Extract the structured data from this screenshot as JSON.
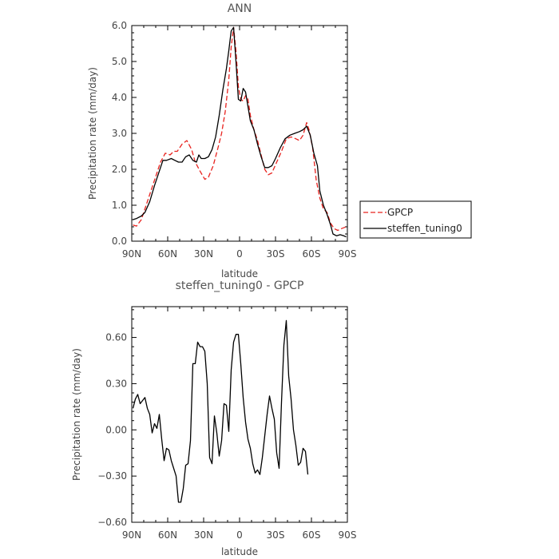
{
  "chart_data": [
    {
      "type": "line",
      "title": "ANN",
      "xlabel": "latitude",
      "ylabel": "Precipitation rate (mm/day)",
      "x_direction": "90N to 90S",
      "xlim": [
        90,
        -90
      ],
      "ylim": [
        0,
        6
      ],
      "xticks": [
        90,
        60,
        30,
        0,
        -30,
        -60,
        -90
      ],
      "xtick_labels": [
        "90N",
        "60N",
        "30N",
        "0",
        "30S",
        "60S",
        "90S"
      ],
      "yticks": [
        0,
        1,
        2,
        3,
        4,
        5,
        6
      ],
      "ytick_labels": [
        "0.0",
        "1.0",
        "2.0",
        "3.0",
        "4.0",
        "5.0",
        "6.0"
      ],
      "grid": false,
      "legend": "outside-right",
      "legend_entries": [
        "GPCP",
        "steffen_tuning0"
      ],
      "series": [
        {
          "name": "GPCP",
          "color": "#e8231f",
          "dash": true,
          "points": [
            [
              89,
              0.45
            ],
            [
              86,
              0.42
            ],
            [
              82,
              0.6
            ],
            [
              78,
              1.0
            ],
            [
              72,
              1.6
            ],
            [
              66,
              2.2
            ],
            [
              62,
              2.45
            ],
            [
              58,
              2.4
            ],
            [
              55,
              2.5
            ],
            [
              52,
              2.5
            ],
            [
              48,
              2.7
            ],
            [
              44,
              2.8
            ],
            [
              40,
              2.55
            ],
            [
              37,
              2.2
            ],
            [
              33,
              1.95
            ],
            [
              29,
              1.72
            ],
            [
              26,
              1.78
            ],
            [
              22,
              2.1
            ],
            [
              18,
              2.6
            ],
            [
              15,
              3.0
            ],
            [
              12,
              3.6
            ],
            [
              9,
              4.5
            ],
            [
              7,
              5.4
            ],
            [
              5,
              5.95
            ],
            [
              3,
              5.3
            ],
            [
              1,
              4.3
            ],
            [
              -1,
              3.95
            ],
            [
              -3,
              3.9
            ],
            [
              -5,
              4.05
            ],
            [
              -7,
              3.95
            ],
            [
              -9,
              3.5
            ],
            [
              -12,
              3.1
            ],
            [
              -15,
              2.8
            ],
            [
              -18,
              2.4
            ],
            [
              -21,
              2.0
            ],
            [
              -24,
              1.85
            ],
            [
              -27,
              1.9
            ],
            [
              -31,
              2.2
            ],
            [
              -35,
              2.5
            ],
            [
              -39,
              2.85
            ],
            [
              -43,
              2.9
            ],
            [
              -47,
              2.85
            ],
            [
              -50,
              2.8
            ],
            [
              -53,
              2.95
            ],
            [
              -56,
              3.3
            ],
            [
              -58,
              3.1
            ],
            [
              -61,
              2.6
            ],
            [
              -64,
              1.7
            ],
            [
              -67,
              1.2
            ],
            [
              -70,
              0.9
            ],
            [
              -73,
              0.8
            ],
            [
              -76,
              0.5
            ],
            [
              -79,
              0.35
            ],
            [
              -82,
              0.3
            ],
            [
              -85,
              0.35
            ],
            [
              -89,
              0.4
            ]
          ]
        },
        {
          "name": "steffen_tuning0",
          "color": "#000000",
          "dash": false,
          "points": [
            [
              89,
              0.6
            ],
            [
              86,
              0.63
            ],
            [
              82,
              0.7
            ],
            [
              79,
              0.8
            ],
            [
              75,
              1.1
            ],
            [
              71,
              1.55
            ],
            [
              67,
              1.95
            ],
            [
              64,
              2.25
            ],
            [
              61,
              2.25
            ],
            [
              57,
              2.3
            ],
            [
              54,
              2.25
            ],
            [
              51,
              2.2
            ],
            [
              48,
              2.2
            ],
            [
              45,
              2.35
            ],
            [
              42,
              2.4
            ],
            [
              39,
              2.25
            ],
            [
              36,
              2.2
            ],
            [
              34,
              2.4
            ],
            [
              32,
              2.3
            ],
            [
              29,
              2.3
            ],
            [
              26,
              2.35
            ],
            [
              23,
              2.55
            ],
            [
              20,
              2.9
            ],
            [
              17,
              3.5
            ],
            [
              14,
              4.2
            ],
            [
              11,
              4.8
            ],
            [
              9,
              5.3
            ],
            [
              7,
              5.85
            ],
            [
              5,
              5.95
            ],
            [
              3,
              5.0
            ],
            [
              1,
              3.95
            ],
            [
              -1,
              3.9
            ],
            [
              -3,
              4.25
            ],
            [
              -5,
              4.15
            ],
            [
              -7,
              3.75
            ],
            [
              -9,
              3.35
            ],
            [
              -12,
              3.1
            ],
            [
              -15,
              2.7
            ],
            [
              -18,
              2.35
            ],
            [
              -21,
              2.05
            ],
            [
              -24,
              2.05
            ],
            [
              -27,
              2.1
            ],
            [
              -30,
              2.3
            ],
            [
              -34,
              2.6
            ],
            [
              -38,
              2.85
            ],
            [
              -42,
              2.95
            ],
            [
              -46,
              3.0
            ],
            [
              -50,
              3.05
            ],
            [
              -53,
              3.1
            ],
            [
              -56,
              3.2
            ],
            [
              -59,
              2.95
            ],
            [
              -62,
              2.45
            ],
            [
              -65,
              2.1
            ],
            [
              -67,
              1.4
            ],
            [
              -70,
              1.0
            ],
            [
              -73,
              0.75
            ],
            [
              -76,
              0.45
            ],
            [
              -78,
              0.2
            ],
            [
              -81,
              0.15
            ],
            [
              -84,
              0.18
            ],
            [
              -87,
              0.15
            ],
            [
              -89,
              0.12
            ]
          ]
        }
      ]
    },
    {
      "type": "line",
      "title": "steffen_tuning0 - GPCP",
      "xlabel": "latitude",
      "ylabel": "Precipitation rate (mm/day)",
      "x_direction": "90N to 90S",
      "xlim": [
        90,
        -90
      ],
      "ylim": [
        -0.6,
        0.8
      ],
      "xticks": [
        90,
        60,
        30,
        0,
        -30,
        -60,
        -90
      ],
      "xtick_labels": [
        "90N",
        "60N",
        "30N",
        "0",
        "30S",
        "60S",
        "90S"
      ],
      "yticks": [
        -0.6,
        -0.3,
        0,
        0.3,
        0.6
      ],
      "ytick_labels": [
        "−0.60",
        "−0.30",
        "0.00",
        "0.30",
        "0.60"
      ],
      "grid": false,
      "series": [
        {
          "color": "#000000",
          "dash": false,
          "points": [
            [
              89,
              0.14
            ],
            [
              87,
              0.2
            ],
            [
              85,
              0.23
            ],
            [
              83,
              0.17
            ],
            [
              81,
              0.19
            ],
            [
              79,
              0.21
            ],
            [
              77,
              0.14
            ],
            [
              75,
              0.1
            ],
            [
              73,
              -0.02
            ],
            [
              71,
              0.04
            ],
            [
              69,
              0.01
            ],
            [
              67,
              0.1
            ],
            [
              65,
              -0.06
            ],
            [
              63,
              -0.2
            ],
            [
              61,
              -0.12
            ],
            [
              59,
              -0.13
            ],
            [
              57,
              -0.2
            ],
            [
              55,
              -0.25
            ],
            [
              53,
              -0.3
            ],
            [
              51,
              -0.47
            ],
            [
              49,
              -0.47
            ],
            [
              47,
              -0.38
            ],
            [
              45,
              -0.23
            ],
            [
              43,
              -0.22
            ],
            [
              41,
              -0.07
            ],
            [
              39,
              0.43
            ],
            [
              37,
              0.43
            ],
            [
              35,
              0.57
            ],
            [
              33,
              0.54
            ],
            [
              31,
              0.54
            ],
            [
              29,
              0.51
            ],
            [
              27,
              0.3
            ],
            [
              25,
              -0.18
            ],
            [
              23,
              -0.22
            ],
            [
              21,
              0.09
            ],
            [
              19,
              -0.02
            ],
            [
              17,
              -0.17
            ],
            [
              15,
              -0.07
            ],
            [
              13,
              0.17
            ],
            [
              11,
              0.16
            ],
            [
              9,
              -0.01
            ],
            [
              7,
              0.39
            ],
            [
              5,
              0.57
            ],
            [
              3,
              0.62
            ],
            [
              1,
              0.62
            ],
            [
              -1,
              0.43
            ],
            [
              -3,
              0.21
            ],
            [
              -5,
              0.05
            ],
            [
              -7,
              -0.06
            ],
            [
              -9,
              -0.12
            ],
            [
              -11,
              -0.22
            ],
            [
              -13,
              -0.28
            ],
            [
              -15,
              -0.26
            ],
            [
              -17,
              -0.29
            ],
            [
              -19,
              -0.18
            ],
            [
              -21,
              -0.04
            ],
            [
              -23,
              0.1
            ],
            [
              -25,
              0.22
            ],
            [
              -27,
              0.14
            ],
            [
              -29,
              0.07
            ],
            [
              -31,
              -0.15
            ],
            [
              -33,
              -0.25
            ],
            [
              -35,
              0.18
            ],
            [
              -37,
              0.55
            ],
            [
              -39,
              0.71
            ],
            [
              -41,
              0.35
            ],
            [
              -43,
              0.2
            ],
            [
              -45,
              0.0
            ],
            [
              -47,
              -0.1
            ],
            [
              -49,
              -0.23
            ],
            [
              -51,
              -0.21
            ],
            [
              -53,
              -0.12
            ],
            [
              -55,
              -0.14
            ],
            [
              -57,
              -0.29
            ]
          ]
        }
      ]
    }
  ]
}
